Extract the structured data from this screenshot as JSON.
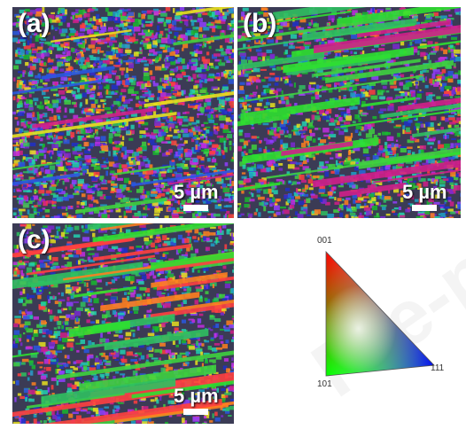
{
  "figure": {
    "panels": [
      {
        "label": "(a)",
        "scale_label": "5 µm",
        "scale_bar_um": 5
      },
      {
        "label": "(b)",
        "scale_label": "5 µm",
        "scale_bar_um": 5
      },
      {
        "label": "(c)",
        "scale_label": "5 µm",
        "scale_bar_um": 5
      }
    ],
    "legend": {
      "corner_001": "001",
      "corner_101": "101",
      "corner_111": "111",
      "colors": {
        "c001": "#ff0000",
        "c101": "#00ff00",
        "c111": "#0000ff"
      }
    },
    "watermark": "Pre-proo"
  }
}
